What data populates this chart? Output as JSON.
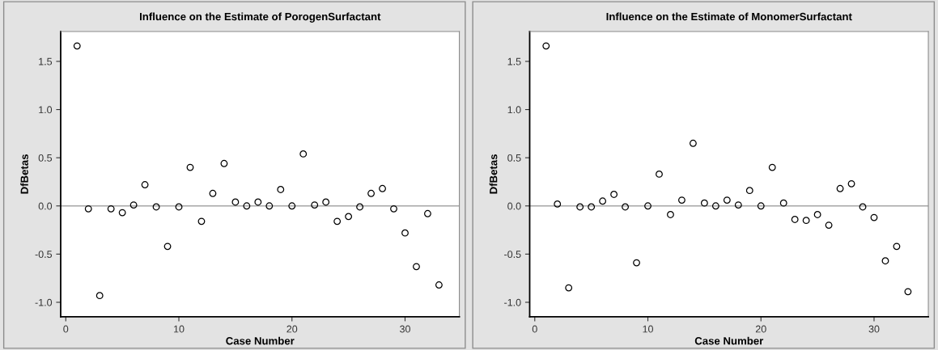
{
  "chart_data": [
    {
      "type": "scatter",
      "title": "Influence on the Estimate of PorogenSurfactant",
      "xlabel": "Case Number",
      "ylabel": "DfBetas",
      "x": [
        1,
        2,
        3,
        4,
        5,
        6,
        7,
        8,
        9,
        10,
        11,
        12,
        13,
        14,
        15,
        16,
        17,
        18,
        19,
        20,
        21,
        22,
        23,
        24,
        25,
        26,
        27,
        28,
        29,
        30,
        31,
        32,
        33
      ],
      "series": [
        {
          "color": "#000000",
          "values": [
            1.66,
            -0.03,
            -0.93,
            -0.03,
            -0.07,
            0.01,
            0.22,
            -0.01,
            -0.42,
            -0.01,
            0.4,
            -0.16,
            0.13,
            0.44,
            0.04,
            0.0,
            0.04,
            0.0,
            0.17,
            0.0,
            0.54,
            0.01,
            0.04,
            -0.16,
            -0.11,
            -0.01,
            0.13,
            0.18,
            -0.03,
            -0.28,
            -0.63,
            -0.08,
            -0.82
          ]
        }
      ],
      "marker": "circle",
      "xlim": [
        -0.45,
        34.8
      ],
      "ylim": [
        -1.15,
        1.81
      ],
      "xticks": [
        0,
        10,
        20,
        30
      ],
      "yticks": [
        {
          "value": -1.0,
          "label": "-1.0"
        },
        {
          "value": -0.5,
          "label": "-0.5"
        },
        {
          "value": 0.0,
          "label": "0.0"
        },
        {
          "value": 0.5,
          "label": "0.5"
        },
        {
          "value": 1.0,
          "label": "1.0"
        },
        {
          "value": 1.5,
          "label": "1.5"
        }
      ],
      "ref_lines": [
        {
          "axis": "y",
          "value": 0,
          "label": null,
          "color": "#a6a6a6"
        }
      ],
      "grid": false
    },
    {
      "type": "scatter",
      "title": "Influence on the Estimate of MonomerSurfactant",
      "xlabel": "Case Number",
      "ylabel": "DfBetas",
      "x": [
        1,
        2,
        3,
        4,
        5,
        6,
        7,
        8,
        9,
        10,
        11,
        12,
        13,
        14,
        15,
        16,
        17,
        18,
        19,
        20,
        21,
        22,
        23,
        24,
        25,
        26,
        27,
        28,
        29,
        30,
        31,
        32,
        33
      ],
      "series": [
        {
          "color": "#000000",
          "values": [
            1.66,
            0.02,
            -0.85,
            -0.01,
            -0.01,
            0.05,
            0.12,
            -0.01,
            -0.59,
            0.0,
            0.33,
            -0.09,
            0.06,
            0.65,
            0.03,
            0.0,
            0.06,
            0.01,
            0.16,
            0.0,
            0.4,
            0.03,
            -0.14,
            -0.15,
            -0.09,
            -0.2,
            0.18,
            0.23,
            -0.01,
            -0.12,
            -0.57,
            -0.42,
            -0.89
          ]
        }
      ],
      "marker": "circle",
      "xlim": [
        -0.45,
        34.8
      ],
      "ylim": [
        -1.15,
        1.81
      ],
      "xticks": [
        0,
        10,
        20,
        30
      ],
      "yticks": [
        {
          "value": -1.0,
          "label": "-1.0"
        },
        {
          "value": -0.5,
          "label": "-0.5"
        },
        {
          "value": 0.0,
          "label": "0.0"
        },
        {
          "value": 0.5,
          "label": "0.5"
        },
        {
          "value": 1.0,
          "label": "1.0"
        },
        {
          "value": 1.5,
          "label": "1.5"
        }
      ],
      "ref_lines": [
        {
          "axis": "y",
          "value": 0,
          "label": null,
          "color": "#a6a6a6"
        }
      ],
      "grid": false
    }
  ]
}
